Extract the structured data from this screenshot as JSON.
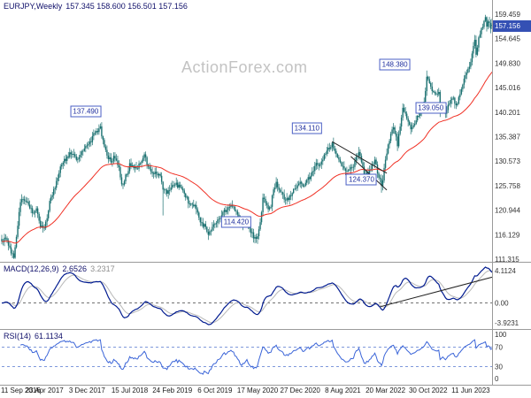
{
  "header": {
    "symbol_title": "EURJPY,Weekly",
    "ohlc": "157.345 158.600 156.501 157.156"
  },
  "watermark": "ActionForex.com",
  "colors": {
    "candle": "#1a7070",
    "ma": "#f03024",
    "macd": "#001a8f",
    "signal": "#b8b8b8",
    "rsi": "#3a64d8",
    "rsi_level": "#5577d0",
    "trendline": "#222222",
    "axis_text": "#333333",
    "callout_border": "#4a5fc4",
    "callout_text": "#1f2f9e",
    "current_price_bg": "#3450b4"
  },
  "price_axis": {
    "max": 159.459,
    "min": 111.315,
    "ticks": [
      "159.459",
      "154.645",
      "149.830",
      "145.016",
      "140.201",
      "135.387",
      "130.573",
      "125.758",
      "120.944",
      "116.129",
      "111.315"
    ],
    "current": "157.156"
  },
  "x_axis": {
    "labels": [
      "11 Sep 2016",
      "23 Apr 2017",
      "3 Dec 2017",
      "15 Jul 2018",
      "24 Feb 2019",
      "6 Oct 2019",
      "17 May 2020",
      "27 Dec 2020",
      "8 Aug 2021",
      "20 Mar 2022",
      "30 Oct 2022",
      "11 Jun 2023"
    ],
    "tick_weeks": [
      0,
      32,
      64,
      96,
      128,
      160,
      192,
      224,
      256,
      288,
      320,
      352
    ]
  },
  "macd": {
    "title": "MACD(12,26,9)",
    "value": "2.6526",
    "signal_value": "3.2317",
    "ticks": {
      "top": "4.1124",
      "zero": "0.00",
      "bottom": "-3.9231"
    }
  },
  "rsi": {
    "title": "RSI(14)",
    "value": "61.1134",
    "ticks": [
      "100",
      "70",
      "30",
      "0"
    ],
    "tick_values": [
      100,
      70,
      30,
      0
    ],
    "levels": [
      70,
      30
    ]
  },
  "chart_data": [
    {
      "type": "candlestick",
      "symbol": "EURJPY",
      "timeframe": "Weekly",
      "weeks": 369,
      "y_range": [
        111.315,
        159.459
      ],
      "last_ohlc": {
        "open": 157.345,
        "high": 158.6,
        "low": 156.501,
        "close": 157.156
      },
      "x_tick_labels": [
        "11 Sep 2016",
        "23 Apr 2017",
        "3 Dec 2017",
        "15 Jul 2018",
        "24 Feb 2019",
        "6 Oct 2019",
        "17 May 2020",
        "27 Dec 2020",
        "8 Aug 2021",
        "20 Mar 2022",
        "30 Oct 2022",
        "11 Jun 2023"
      ],
      "close_anchors": [
        [
          0,
          114.8
        ],
        [
          3,
          115.5
        ],
        [
          6,
          113.2
        ],
        [
          9,
          111.9
        ],
        [
          11,
          116.0
        ],
        [
          14,
          122.5
        ],
        [
          17,
          123.0
        ],
        [
          20,
          122.0
        ],
        [
          23,
          120.5
        ],
        [
          26,
          121.5
        ],
        [
          29,
          118.0
        ],
        [
          32,
          117.3
        ],
        [
          34,
          119.5
        ],
        [
          36,
          122.5
        ],
        [
          40,
          125.5
        ],
        [
          44,
          129.5
        ],
        [
          48,
          131.0
        ],
        [
          52,
          132.3
        ],
        [
          56,
          131.0
        ],
        [
          60,
          132.5
        ],
        [
          64,
          133.5
        ],
        [
          67,
          134.5
        ],
        [
          70,
          136.3
        ],
        [
          74,
          137.2
        ],
        [
          76,
          134.5
        ],
        [
          79,
          131.8
        ],
        [
          82,
          130.5
        ],
        [
          85,
          131.5
        ],
        [
          88,
          129.5
        ],
        [
          90,
          125.8
        ],
        [
          93,
          127.5
        ],
        [
          96,
          129.8
        ],
        [
          100,
          129.3
        ],
        [
          104,
          129.8
        ],
        [
          107,
          131.8
        ],
        [
          110,
          129.5
        ],
        [
          113,
          127.8
        ],
        [
          116,
          128.3
        ],
        [
          119,
          127.5
        ],
        [
          121,
          124.8
        ],
        [
          124,
          124.5
        ],
        [
          128,
          125.5
        ],
        [
          131,
          126.0
        ],
        [
          134,
          125.3
        ],
        [
          137,
          124.3
        ],
        [
          140,
          122.5
        ],
        [
          143,
          122.2
        ],
        [
          146,
          121.5
        ],
        [
          149,
          118.5
        ],
        [
          152,
          117.8
        ],
        [
          155,
          116.3
        ],
        [
          158,
          117.3
        ],
        [
          160,
          118.2
        ],
        [
          163,
          119.5
        ],
        [
          166,
          120.3
        ],
        [
          169,
          121.2
        ],
        [
          172,
          121.9
        ],
        [
          175,
          120.8
        ],
        [
          178,
          119.8
        ],
        [
          180,
          117.8
        ],
        [
          182,
          118.5
        ],
        [
          184,
          119.3
        ],
        [
          186,
          117.0
        ],
        [
          188,
          116.2
        ],
        [
          190,
          115.2
        ],
        [
          192,
          115.8
        ],
        [
          194,
          118.5
        ],
        [
          196,
          123.2
        ],
        [
          198,
          122.5
        ],
        [
          200,
          121.2
        ],
        [
          202,
          122.0
        ],
        [
          204,
          124.8
        ],
        [
          206,
          126.2
        ],
        [
          208,
          125.3
        ],
        [
          210,
          124.5
        ],
        [
          212,
          123.3
        ],
        [
          214,
          123.0
        ],
        [
          216,
          123.5
        ],
        [
          218,
          124.3
        ],
        [
          220,
          125.2
        ],
        [
          222,
          125.8
        ],
        [
          224,
          126.2
        ],
        [
          226,
          125.8
        ],
        [
          228,
          126.5
        ],
        [
          230,
          127.2
        ],
        [
          232,
          127.5
        ],
        [
          234,
          128.8
        ],
        [
          236,
          129.8
        ],
        [
          238,
          129.5
        ],
        [
          240,
          130.3
        ],
        [
          242,
          131.5
        ],
        [
          244,
          132.8
        ],
        [
          246,
          133.3
        ],
        [
          248,
          133.8
        ],
        [
          250,
          132.3
        ],
        [
          252,
          131.0
        ],
        [
          254,
          130.3
        ],
        [
          256,
          129.5
        ],
        [
          258,
          128.8
        ],
        [
          260,
          128.5
        ],
        [
          262,
          129.3
        ],
        [
          264,
          129.8
        ],
        [
          266,
          131.0
        ],
        [
          268,
          132.3
        ],
        [
          270,
          130.5
        ],
        [
          272,
          128.0
        ],
        [
          274,
          128.3
        ],
        [
          276,
          128.5
        ],
        [
          278,
          130.0
        ],
        [
          280,
          130.8
        ],
        [
          282,
          128.5
        ],
        [
          284,
          127.0
        ],
        [
          285,
          125.3
        ],
        [
          286,
          127.0
        ],
        [
          287,
          129.5
        ],
        [
          288,
          131.0
        ],
        [
          290,
          133.8
        ],
        [
          292,
          135.5
        ],
        [
          294,
          137.3
        ],
        [
          296,
          135.0
        ],
        [
          297,
          133.9
        ],
        [
          298,
          135.5
        ],
        [
          300,
          139.3
        ],
        [
          301,
          141.2
        ],
        [
          303,
          140.0
        ],
        [
          305,
          138.5
        ],
        [
          307,
          136.8
        ],
        [
          309,
          137.8
        ],
        [
          311,
          138.3
        ],
        [
          313,
          139.8
        ],
        [
          315,
          141.0
        ],
        [
          317,
          141.8
        ],
        [
          319,
          147.3
        ],
        [
          320,
          146.3
        ],
        [
          322,
          145.3
        ],
        [
          324,
          144.2
        ],
        [
          326,
          143.5
        ],
        [
          328,
          144.0
        ],
        [
          329,
          140.5
        ],
        [
          331,
          141.5
        ],
        [
          333,
          139.8
        ],
        [
          335,
          141.3
        ],
        [
          337,
          142.3
        ],
        [
          339,
          142.8
        ],
        [
          341,
          141.5
        ],
        [
          343,
          143.0
        ],
        [
          345,
          144.8
        ],
        [
          347,
          146.5
        ],
        [
          349,
          147.8
        ],
        [
          351,
          149.3
        ],
        [
          353,
          151.3
        ],
        [
          355,
          154.3
        ],
        [
          356,
          151.5
        ],
        [
          358,
          154.5
        ],
        [
          360,
          156.3
        ],
        [
          362,
          157.8
        ],
        [
          363,
          158.6
        ],
        [
          364,
          157.3
        ],
        [
          365,
          158.2
        ],
        [
          366,
          157.5
        ],
        [
          367,
          156.2
        ],
        [
          368,
          157.156
        ]
      ],
      "forced_extremes": [
        {
          "week": 8,
          "low": 111.5
        },
        {
          "week": 74,
          "high": 137.49
        },
        {
          "week": 121,
          "low": 119.9
        },
        {
          "week": 190,
          "low": 114.42
        },
        {
          "week": 248,
          "high": 134.11
        },
        {
          "week": 285,
          "low": 124.37
        },
        {
          "week": 319,
          "high": 148.38
        },
        {
          "week": 333,
          "low": 139.05
        },
        {
          "week": 363,
          "high": 159.0
        }
      ],
      "ma": {
        "type": "EMA",
        "period": 55
      },
      "callouts": [
        {
          "label": "137.490",
          "week": 63,
          "price": 140.3
        },
        {
          "label": "114.420",
          "week": 176,
          "price": 118.6
        },
        {
          "label": "134.110",
          "week": 229,
          "price": 137.0
        },
        {
          "label": "124.370",
          "week": 270,
          "price": 126.9
        },
        {
          "label": "148.380",
          "week": 295,
          "price": 149.5
        },
        {
          "label": "139.050",
          "week": 322,
          "price": 141.0
        }
      ],
      "trendlines": [
        {
          "from": {
            "week": 248,
            "price": 134.4
          },
          "to": {
            "week": 289,
            "price": 128.2
          }
        },
        {
          "from": {
            "week": 262,
            "price": 131.5
          },
          "to": {
            "week": 289,
            "price": 124.9
          }
        }
      ]
    },
    {
      "type": "line",
      "name": "MACD(12,26,9)",
      "current": 2.6526,
      "signal_current": 3.2317,
      "y_ticks": [
        4.1124,
        0,
        -3.9231
      ],
      "trendline": {
        "from": {
          "week": 284,
          "value": -0.4
        },
        "to": {
          "week": 368,
          "value": 2.7
        }
      }
    },
    {
      "type": "line",
      "name": "RSI(14)",
      "current": 61.1134,
      "y_range": [
        0,
        100
      ],
      "overbought": 70,
      "oversold": 30
    }
  ]
}
